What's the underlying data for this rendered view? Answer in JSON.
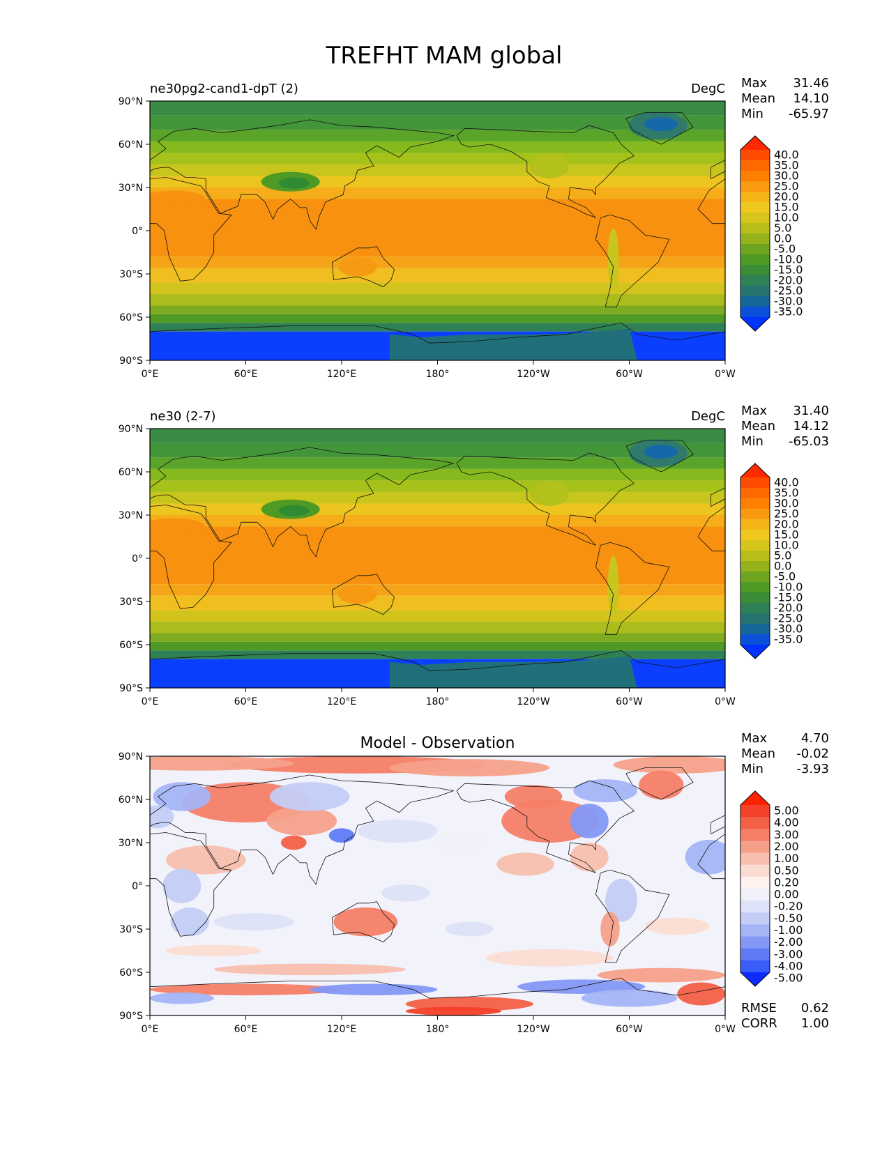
{
  "figure": {
    "title": "TREFHT MAM global"
  },
  "chart_data": [
    {
      "type": "contour-map",
      "left_title": "ne30pg2-cand1-dpT (2)",
      "center_title": "",
      "units": "DegC",
      "stats": [
        {
          "label": "Max",
          "value": "31.46"
        },
        {
          "label": "Mean",
          "value": "14.10"
        },
        {
          "label": "Min",
          "value": "-65.97"
        }
      ],
      "extra_stats": [],
      "lat_ticks": [
        "90°N",
        "60°N",
        "30°N",
        "0°",
        "30°S",
        "60°S",
        "90°S"
      ],
      "lon_ticks": [
        "0°E",
        "60°E",
        "120°E",
        "180°",
        "120°W",
        "60°W",
        "0°W"
      ],
      "colorbar_levels": [
        "40.0",
        "35.0",
        "30.0",
        "25.0",
        "20.0",
        "15.0",
        "10.0",
        "5.0",
        "0.0",
        "-5.0",
        "-10.0",
        "-15.0",
        "-20.0",
        "-25.0",
        "-30.0",
        "-35.0"
      ],
      "colorbar_colors": [
        "#ff2a00",
        "#ff4d00",
        "#ff6a00",
        "#ff8000",
        "#f99a10",
        "#f5b418",
        "#f0c81f",
        "#d6c51c",
        "#b8be1a",
        "#95b21c",
        "#6fa420",
        "#4f9a24",
        "#3a8c36",
        "#2f8054",
        "#257470",
        "#16669a",
        "#0a50d8",
        "#0033ff"
      ],
      "field_type": "temperature"
    },
    {
      "type": "contour-map",
      "left_title": "ne30 (2-7)",
      "center_title": "",
      "units": "DegC",
      "stats": [
        {
          "label": "Max",
          "value": "31.40"
        },
        {
          "label": "Mean",
          "value": "14.12"
        },
        {
          "label": "Min",
          "value": "-65.03"
        }
      ],
      "extra_stats": [],
      "lat_ticks": [
        "90°N",
        "60°N",
        "30°N",
        "0°",
        "30°S",
        "60°S",
        "90°S"
      ],
      "lon_ticks": [
        "0°E",
        "60°E",
        "120°E",
        "180°",
        "120°W",
        "60°W",
        "0°W"
      ],
      "colorbar_levels": [
        "40.0",
        "35.0",
        "30.0",
        "25.0",
        "20.0",
        "15.0",
        "10.0",
        "5.0",
        "0.0",
        "-5.0",
        "-10.0",
        "-15.0",
        "-20.0",
        "-25.0",
        "-30.0",
        "-35.0"
      ],
      "colorbar_colors": [
        "#ff2a00",
        "#ff4d00",
        "#ff6a00",
        "#ff8000",
        "#f99a10",
        "#f5b418",
        "#f0c81f",
        "#d6c51c",
        "#b8be1a",
        "#95b21c",
        "#6fa420",
        "#4f9a24",
        "#3a8c36",
        "#2f8054",
        "#257470",
        "#16669a",
        "#0a50d8",
        "#0033ff"
      ],
      "field_type": "temperature"
    },
    {
      "type": "contour-map",
      "left_title": "",
      "center_title": "Model - Observation",
      "units": "",
      "stats": [
        {
          "label": "Max",
          "value": "4.70"
        },
        {
          "label": "Mean",
          "value": "-0.02"
        },
        {
          "label": "Min",
          "value": "-3.93"
        }
      ],
      "extra_stats": [
        {
          "label": "RMSE",
          "value": "0.62"
        },
        {
          "label": "CORR",
          "value": "1.00"
        }
      ],
      "lat_ticks": [
        "90°N",
        "60°N",
        "30°N",
        "0°",
        "30°S",
        "60°S",
        "90°S"
      ],
      "lon_ticks": [
        "0°E",
        "60°E",
        "120°E",
        "180°",
        "120°W",
        "60°W",
        "0°W"
      ],
      "colorbar_levels": [
        "5.00",
        "4.00",
        "3.00",
        "2.00",
        "1.00",
        "0.50",
        "0.20",
        "0.00",
        "-0.20",
        "-0.50",
        "-1.00",
        "-2.00",
        "-3.00",
        "-4.00",
        "-5.00"
      ],
      "colorbar_colors": [
        "#ff2200",
        "#f5402a",
        "#f26046",
        "#f47e66",
        "#f6a08a",
        "#f8bfae",
        "#fbdcd2",
        "#fff2ee",
        "#f0f0fb",
        "#dde2f8",
        "#c3cdf6",
        "#a4b4f5",
        "#8398f5",
        "#5f7af5",
        "#3a5cf8",
        "#0b2bff"
      ],
      "field_type": "diff"
    }
  ]
}
